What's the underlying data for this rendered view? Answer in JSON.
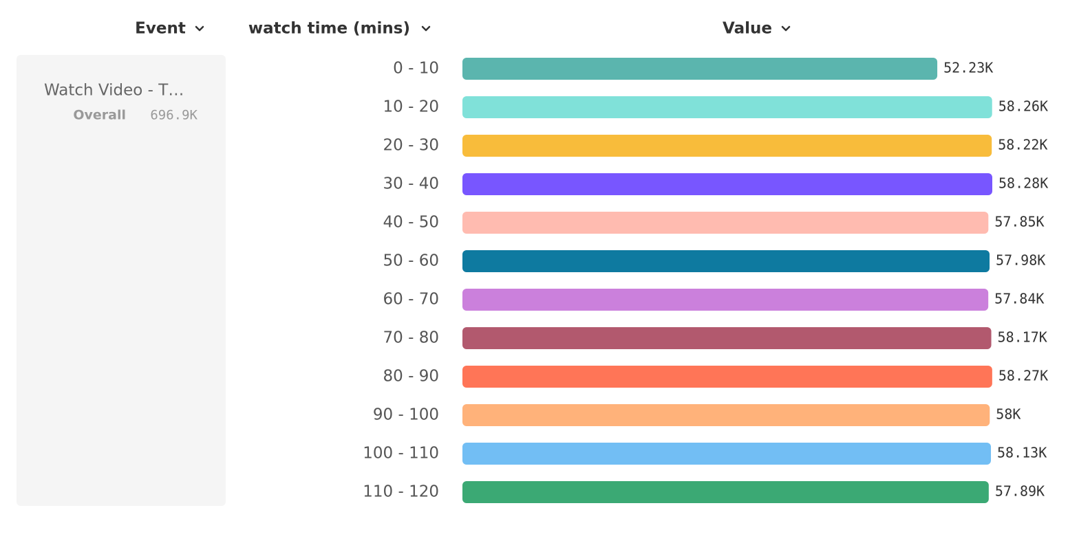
{
  "header": {
    "event": "Event",
    "breakdown": "watch time (mins)",
    "value": "Value"
  },
  "segment": {
    "event": "Watch Video - T…",
    "label": "Overall",
    "total": "696.9K"
  },
  "chart_data": {
    "type": "bar",
    "categories": [
      "0 - 10",
      "10 - 20",
      "20 - 30",
      "30 - 40",
      "40 - 50",
      "50 - 60",
      "60 - 70",
      "70 - 80",
      "80 - 90",
      "90 - 100",
      "100 - 110",
      "110 - 120"
    ],
    "values": [
      52230,
      58260,
      58220,
      58280,
      57850,
      57980,
      57840,
      58170,
      58270,
      58000,
      58130,
      57890
    ],
    "value_labels": [
      "52.23K",
      "58.26K",
      "58.22K",
      "58.28K",
      "57.85K",
      "57.98K",
      "57.84K",
      "58.17K",
      "58.27K",
      "58K",
      "58.13K",
      "57.89K"
    ],
    "colors": [
      "#5bb5ae",
      "#80e1d9",
      "#f8bc3b",
      "#7856ff",
      "#ffbbb0",
      "#0e7aa0",
      "#cb80dc",
      "#b2596e",
      "#ff7557",
      "#ffb27a",
      "#72bef4",
      "#3ba974"
    ]
  }
}
